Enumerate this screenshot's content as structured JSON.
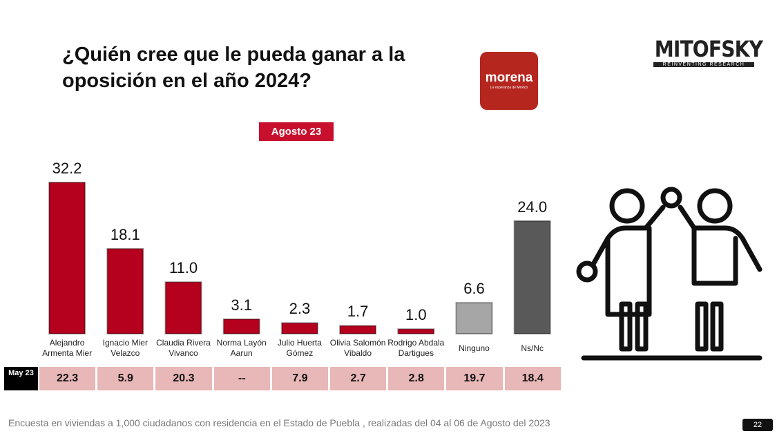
{
  "chart_data": {
    "type": "bar",
    "title": "¿Quién cree que le pueda ganar a la oposición en el año 2024?",
    "period": "Agosto 23",
    "categories": [
      "Alejandro Armenta Mier",
      "Ignacio Mier Velazco",
      "Claudia Rivera Vivanco",
      "Norma Layón Aarun",
      "Julio Huerta Gómez",
      "Olivia Salomón Vibaldo",
      "Rodrigo Abdala Dartigues",
      "Ninguno",
      "Ns/Nc"
    ],
    "values": [
      32.2,
      18.1,
      11.0,
      3.1,
      2.3,
      1.7,
      1.0,
      6.6,
      24.0
    ],
    "value_labels": [
      "32.2",
      "18.1",
      "11.0",
      "3.1",
      "2.3",
      "1.7",
      "1.0",
      "6.6",
      "24.0"
    ],
    "colors": [
      "#b5001e",
      "#b5001e",
      "#b5001e",
      "#b5001e",
      "#b5001e",
      "#b5001e",
      "#b5001e",
      "#a6a6a6",
      "#595959"
    ],
    "comparison_row": {
      "label": "May 23",
      "cells": [
        "22.3",
        "5.9",
        "20.3",
        "--",
        "7.9",
        "2.7",
        "2.8",
        "19.7",
        "18.4"
      ]
    }
  },
  "logos": {
    "party": {
      "name": "morena",
      "tagline": "La esperanza de México"
    },
    "pollster": {
      "name": "MITOFSKY",
      "tagline": "REINVENTING RESEARCH"
    }
  },
  "footnote": "Encuesta en viviendas a 1,000 ciudadanos con residencia en el Estado de Puebla , realizadas del 04 al 06 de Agosto del 2023",
  "page_number": "22"
}
